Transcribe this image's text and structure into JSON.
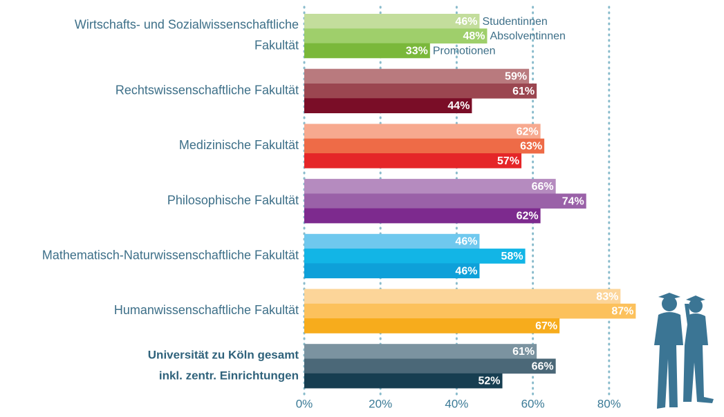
{
  "chart_data": {
    "type": "bar",
    "orientation": "horizontal",
    "categories": [
      [
        "Wirtschafts- und Sozialwissenschaftliche",
        "Fakultät"
      ],
      [
        "Rechtswissenschaftliche Fakultät"
      ],
      [
        "Medizinische Fakultät"
      ],
      [
        "Philosophische Fakultät"
      ],
      [
        "Mathematisch-Naturwissenschaftliche Fakultät"
      ],
      [
        "Humanwissenschaftliche Fakultät"
      ],
      [
        "Universität zu Köln gesamt",
        "inkl. zentr. Einrichtungen"
      ]
    ],
    "series": [
      {
        "name": "Studentinnen",
        "values": [
          46,
          59,
          62,
          66,
          46,
          83,
          61
        ],
        "value_labels": [
          "46%",
          "59%",
          "62%",
          "66%",
          "46%",
          "83%",
          "61%"
        ],
        "colors": [
          "#c3dd9c",
          "#b97a7e",
          "#f7a98f",
          "#b58bbf",
          "#6fc8ee",
          "#fcd599",
          "#7b93a0"
        ]
      },
      {
        "name": "Absolventinnen",
        "values": [
          48,
          61,
          63,
          74,
          58,
          87,
          66
        ],
        "value_labels": [
          "48%",
          "61%",
          "63%",
          "74%",
          "58%",
          "87%",
          "66%"
        ],
        "colors": [
          "#9fcf6b",
          "#9b4650",
          "#ee6b47",
          "#9a61a8",
          "#12b5e6",
          "#fcc15c",
          "#4b6878"
        ]
      },
      {
        "name": "Promotionen",
        "values": [
          33,
          44,
          57,
          62,
          46,
          67,
          52
        ],
        "value_labels": [
          "33%",
          "44%",
          "57%",
          "62%",
          "46%",
          "67%",
          "52%"
        ],
        "colors": [
          "#7ab83a",
          "#7a0d27",
          "#e52628",
          "#7d2a8e",
          "#0ea0d9",
          "#f7ac1c",
          "#173e51"
        ]
      }
    ],
    "xlim": [
      0,
      90
    ],
    "xticks": [
      {
        "value": 0,
        "label": "0%"
      },
      {
        "value": 20,
        "label": "20%"
      },
      {
        "value": 40,
        "label": "40%"
      },
      {
        "value": 60,
        "label": "60%"
      },
      {
        "value": 80,
        "label": "80%"
      }
    ],
    "grid": true
  }
}
